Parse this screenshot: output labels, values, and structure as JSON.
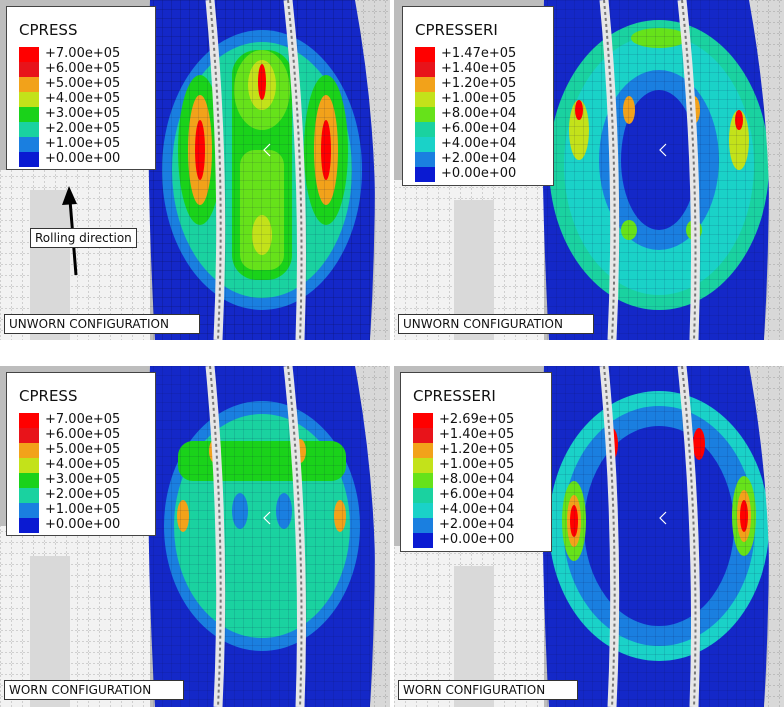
{
  "panels": [
    {
      "id": "top-left",
      "field": "CPRESS",
      "levels": [
        "+7.00e+05",
        "+6.00e+05",
        "+5.00e+05",
        "+4.00e+05",
        "+3.00e+05",
        "+2.00e+05",
        "+1.00e+05",
        "+0.00e+00"
      ],
      "caption": "UNWORN CONFIGURATION",
      "annotation": "Rolling direction"
    },
    {
      "id": "top-right",
      "field": "CPRESSERI",
      "levels": [
        "+1.47e+05",
        "+1.40e+05",
        "+1.20e+05",
        "+1.00e+05",
        "+8.00e+04",
        "+6.00e+04",
        "+4.00e+04",
        "+2.00e+04",
        "+0.00e+00"
      ],
      "caption": "UNWORN CONFIGURATION"
    },
    {
      "id": "bottom-left",
      "field": "CPRESS",
      "levels": [
        "+7.00e+05",
        "+6.00e+05",
        "+5.00e+05",
        "+4.00e+05",
        "+3.00e+05",
        "+2.00e+05",
        "+1.00e+05",
        "+0.00e+00"
      ],
      "caption": "WORN CONFIGURATION"
    },
    {
      "id": "bottom-right",
      "field": "CPRESSERI",
      "levels": [
        "+2.69e+05",
        "+1.40e+05",
        "+1.20e+05",
        "+1.00e+05",
        "+8.00e+04",
        "+6.00e+04",
        "+4.00e+04",
        "+2.00e+04",
        "+0.00e+00"
      ],
      "caption": "WORN CONFIGURATION"
    }
  ],
  "colors": {
    "contour_8": [
      "#ff0000",
      "#f2a21a",
      "#c3e21a",
      "#66e21a",
      "#1ad21a",
      "#1ad2a0",
      "#1a7fe0",
      "#0a1ad2"
    ],
    "contour_9": [
      "#ff0000",
      "#e8131a",
      "#f2a21a",
      "#c3e21a",
      "#66e21a",
      "#1ad2a0",
      "#1ad2c8",
      "#1a7fe0",
      "#0a1ad2"
    ],
    "tread_blue": "#1428c8",
    "groove_grey": "#d8d8d8"
  }
}
